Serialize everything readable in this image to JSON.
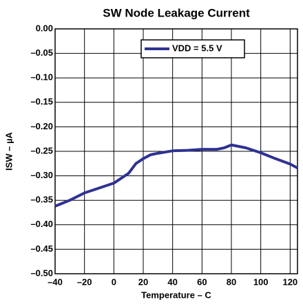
{
  "chart_data": {
    "type": "line",
    "title": "SW Node Leakage Current",
    "xlabel": "Temperature – C",
    "ylabel": "ISW – µA",
    "x": [
      -40,
      -30,
      -20,
      -10,
      0,
      10,
      15,
      20,
      25,
      30,
      40,
      50,
      60,
      70,
      75,
      80,
      90,
      100,
      110,
      120,
      125
    ],
    "series": [
      {
        "name": "VDD = 5.5 V",
        "color": "#2e3192",
        "values": [
          -0.362,
          -0.35,
          -0.335,
          -0.325,
          -0.315,
          -0.295,
          -0.275,
          -0.265,
          -0.257,
          -0.254,
          -0.249,
          -0.248,
          -0.246,
          -0.246,
          -0.243,
          -0.237,
          -0.243,
          -0.253,
          -0.265,
          -0.276,
          -0.284
        ]
      }
    ],
    "xlim": [
      -40,
      125
    ],
    "ylim": [
      -0.5,
      0
    ],
    "xticks": [
      {
        "value": -40,
        "label": "–40"
      },
      {
        "value": -20,
        "label": "–20"
      },
      0,
      20,
      40,
      60,
      80,
      100,
      120
    ],
    "yticks": [
      {
        "value": 0,
        "label": "0.00"
      },
      {
        "value": -0.05,
        "label": "–0.05"
      },
      {
        "value": -0.1,
        "label": "–0.10"
      },
      {
        "value": -0.15,
        "label": "–0.15"
      },
      {
        "value": -0.2,
        "label": "–0.20"
      },
      {
        "value": -0.25,
        "label": "–0.25"
      },
      {
        "value": -0.3,
        "label": "–0.30"
      },
      {
        "value": -0.35,
        "label": "–0.35"
      },
      {
        "value": -0.4,
        "label": "–0.40"
      },
      {
        "value": -0.45,
        "label": "–0.45"
      },
      {
        "value": -0.5,
        "label": "–0.50"
      }
    ],
    "grid": true
  }
}
